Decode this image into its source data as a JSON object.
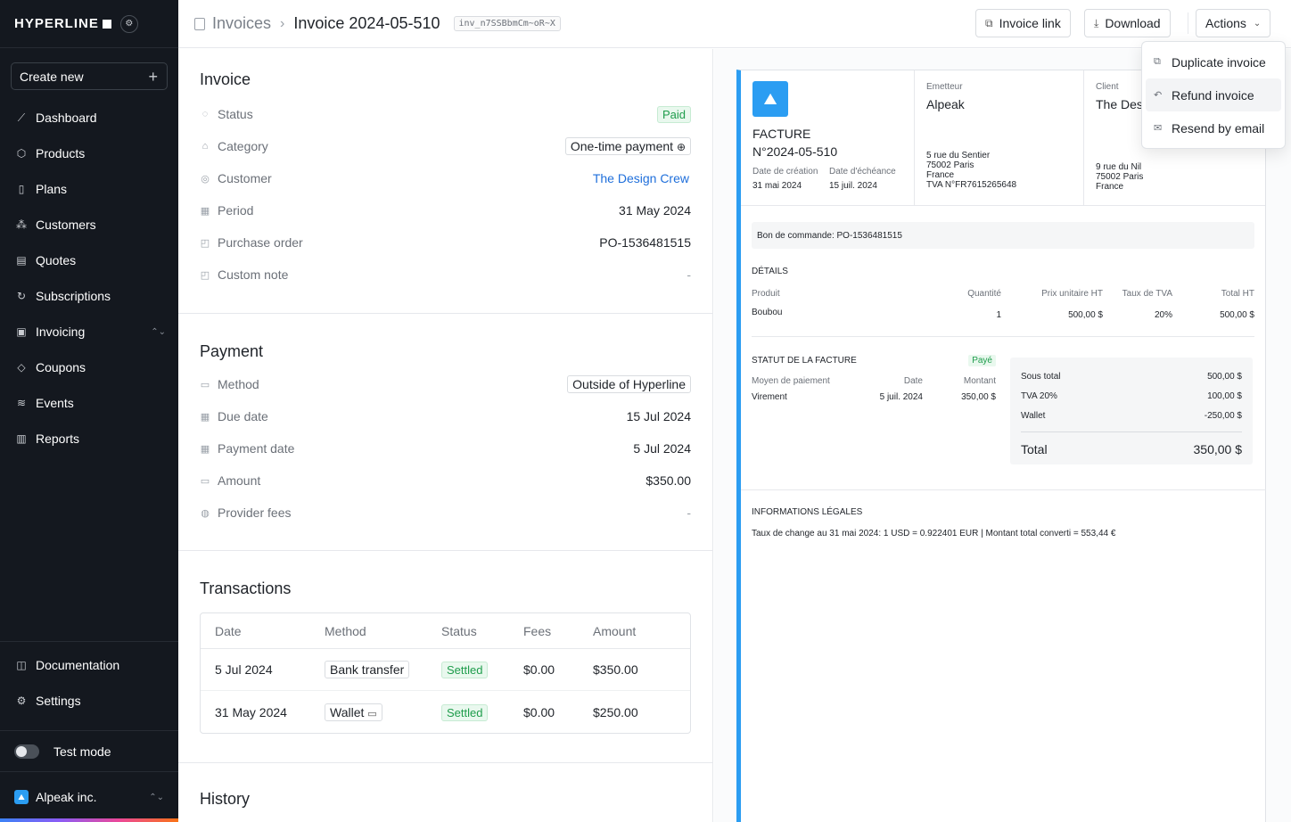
{
  "sidebar": {
    "logo": "HYPERLINE",
    "create_new": "Create new",
    "items": [
      {
        "label": "Dashboard",
        "icon": "chart-line-icon"
      },
      {
        "label": "Products",
        "icon": "box-icon"
      },
      {
        "label": "Plans",
        "icon": "book-icon"
      },
      {
        "label": "Customers",
        "icon": "users-icon"
      },
      {
        "label": "Quotes",
        "icon": "document-icon"
      },
      {
        "label": "Subscriptions",
        "icon": "refresh-icon"
      },
      {
        "label": "Invoicing",
        "icon": "receipt-icon"
      },
      {
        "label": "Coupons",
        "icon": "tag-icon"
      },
      {
        "label": "Events",
        "icon": "database-icon"
      },
      {
        "label": "Reports",
        "icon": "bar-chart-icon"
      }
    ],
    "bottom_items": [
      {
        "label": "Documentation",
        "icon": "book-open-icon"
      },
      {
        "label": "Settings",
        "icon": "gear-icon"
      }
    ],
    "test_mode": "Test mode",
    "org": "Alpeak inc."
  },
  "header": {
    "breadcrumb_parent": "Invoices",
    "title": "Invoice 2024-05-510",
    "invoice_id": "inv_n7SSBbmCm~oR~X",
    "invoice_link": "Invoice link",
    "download": "Download",
    "actions": "Actions"
  },
  "actions_menu": {
    "items": [
      "Duplicate invoice",
      "Refund invoice",
      "Resend by email"
    ]
  },
  "invoice_section": {
    "title": "Invoice",
    "rows": [
      {
        "label": "Status",
        "value": "Paid"
      },
      {
        "label": "Category",
        "value": "One-time payment"
      },
      {
        "label": "Customer",
        "value": "The Design Crew"
      },
      {
        "label": "Period",
        "value": "31 May 2024"
      },
      {
        "label": "Purchase order",
        "value": "PO-1536481515"
      },
      {
        "label": "Custom note",
        "value": "-"
      }
    ]
  },
  "payment_section": {
    "title": "Payment",
    "rows": [
      {
        "label": "Method",
        "value": "Outside of Hyperline"
      },
      {
        "label": "Due date",
        "value": "15 Jul 2024"
      },
      {
        "label": "Payment date",
        "value": "5 Jul 2024"
      },
      {
        "label": "Amount",
        "value": "$350.00"
      },
      {
        "label": "Provider fees",
        "value": "-"
      }
    ]
  },
  "transactions": {
    "title": "Transactions",
    "columns": [
      "Date",
      "Method",
      "Status",
      "Fees",
      "Amount"
    ],
    "rows": [
      {
        "date": "5 Jul 2024",
        "method": "Bank transfer",
        "status": "Settled",
        "fees": "$0.00",
        "amount": "$350.00"
      },
      {
        "date": "31 May 2024",
        "method": "Wallet",
        "status": "Settled",
        "fees": "$0.00",
        "amount": "$250.00"
      }
    ]
  },
  "history_title": "History",
  "preview": {
    "doc_type": "FACTURE",
    "doc_number": "N°2024-05-510",
    "created_label": "Date de création",
    "created": "31 mai 2024",
    "due_label": "Date d'échéance",
    "due": "15 juil. 2024",
    "issuer_label": "Emetteur",
    "issuer": "Alpeak",
    "issuer_addr1": "5 rue du Sentier",
    "issuer_addr2": "75002 Paris",
    "issuer_addr3": "France",
    "issuer_vat": "TVA N°FR7615265648",
    "client_label": "Client",
    "client": "The Des",
    "client_addr1": "9 rue du Nil",
    "client_addr2": "75002 Paris",
    "client_addr3": "France",
    "po": "Bon de commande: PO-1536481515",
    "details_title": "DÉTAILS",
    "details_cols": [
      "Produit",
      "Quantité",
      "Prix unitaire HT",
      "Taux de TVA",
      "Total HT"
    ],
    "details_row": [
      "Boubou",
      "1",
      "500,00 $",
      "20%",
      "500,00 $"
    ],
    "status_title": "STATUT DE LA FACTURE",
    "status_badge": "Payé",
    "pay_cols": [
      "Moyen de paiement",
      "Date",
      "Montant"
    ],
    "pay_row": [
      "Virement",
      "5 juil. 2024",
      "350,00 $"
    ],
    "subtotal_label": "Sous total",
    "subtotal": "500,00 $",
    "vat_label": "TVA 20%",
    "vat": "100,00 $",
    "wallet_label": "Wallet",
    "wallet": "-250,00 $",
    "total_label": "Total",
    "total": "350,00 $",
    "legal_title": "INFORMATIONS LÉGALES",
    "legal_text": "Taux de change au 31 mai 2024: 1 USD = 0.922401 EUR | Montant total converti = 553,44 €"
  }
}
